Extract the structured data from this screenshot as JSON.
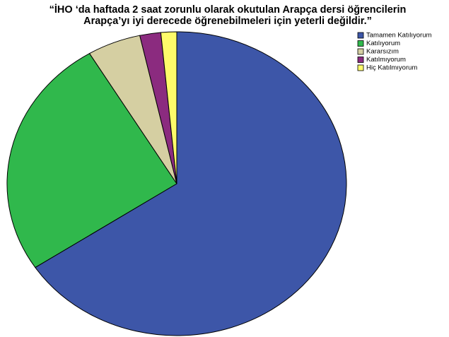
{
  "chart_data": {
    "type": "pie",
    "title": [
      "“İHO ‘da haftada 2 saat zorunlu olarak okutulan Arapça dersi öğrencilerin",
      "Arapça’yı iyi derecede öğrenebilmeleri için yeterli değildir.”"
    ],
    "categories": [
      "Tamamen Katılıyorum",
      "Katılıyorum",
      "Kararsızım",
      "Katılmıyorum",
      "Hiç Katılmıyorum"
    ],
    "values": [
      65.7,
      25.7,
      5.1,
      2.0,
      1.5
    ],
    "colors": [
      "#3d56a8",
      "#30b84c",
      "#d5cfa2",
      "#8b2b7f",
      "#fffb6a"
    ],
    "legend": "top-right"
  }
}
